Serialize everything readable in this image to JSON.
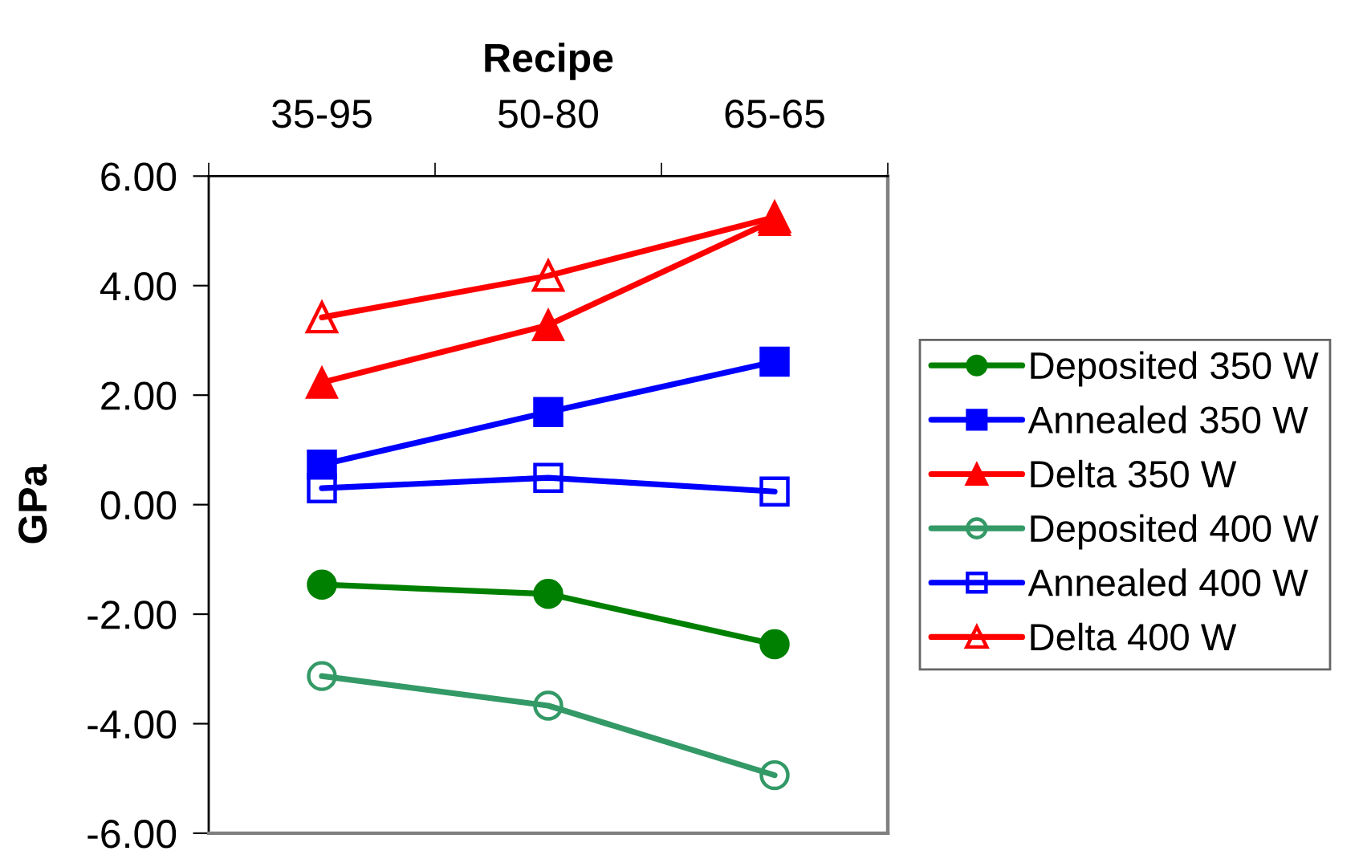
{
  "chart_data": {
    "type": "line",
    "xlabel": "Recipe",
    "ylabel": "GPa",
    "categories": [
      "35-95",
      "50-80",
      "65-65"
    ],
    "series": [
      {
        "name": "Deposited 350 W",
        "color": "#008000",
        "marker": "circle",
        "values": [
          -1.46,
          -1.63,
          -2.55
        ]
      },
      {
        "name": "Annealed 350 W",
        "color": "#0000ff",
        "marker": "square",
        "values": [
          0.73,
          1.69,
          2.61
        ]
      },
      {
        "name": "Delta 350 W",
        "color": "#ff0000",
        "marker": "triangle",
        "values": [
          2.23,
          3.28,
          5.2
        ]
      },
      {
        "name": "Deposited 400 W",
        "color": "#339966",
        "marker": "circle",
        "values": [
          -3.13,
          -3.67,
          -4.94
        ]
      },
      {
        "name": "Annealed 400 W",
        "color": "#0000ff",
        "marker": "square",
        "values": [
          0.3,
          0.49,
          0.24
        ]
      },
      {
        "name": "Delta 400 W",
        "color": "#ff0000",
        "marker": "triangle",
        "values": [
          3.42,
          4.18,
          5.25
        ]
      }
    ],
    "ylim": [
      -6,
      6
    ],
    "yticks": [
      {
        "value": -6,
        "label": "-6.00"
      },
      {
        "value": -4,
        "label": "-4.00"
      },
      {
        "value": -2,
        "label": "-2.00"
      },
      {
        "value": 0,
        "label": "0.00"
      },
      {
        "value": 2,
        "label": "2.00"
      },
      {
        "value": 4,
        "label": "4.00"
      },
      {
        "value": 6,
        "label": "6.00"
      }
    ],
    "line_style": "solid",
    "legend": "right"
  }
}
